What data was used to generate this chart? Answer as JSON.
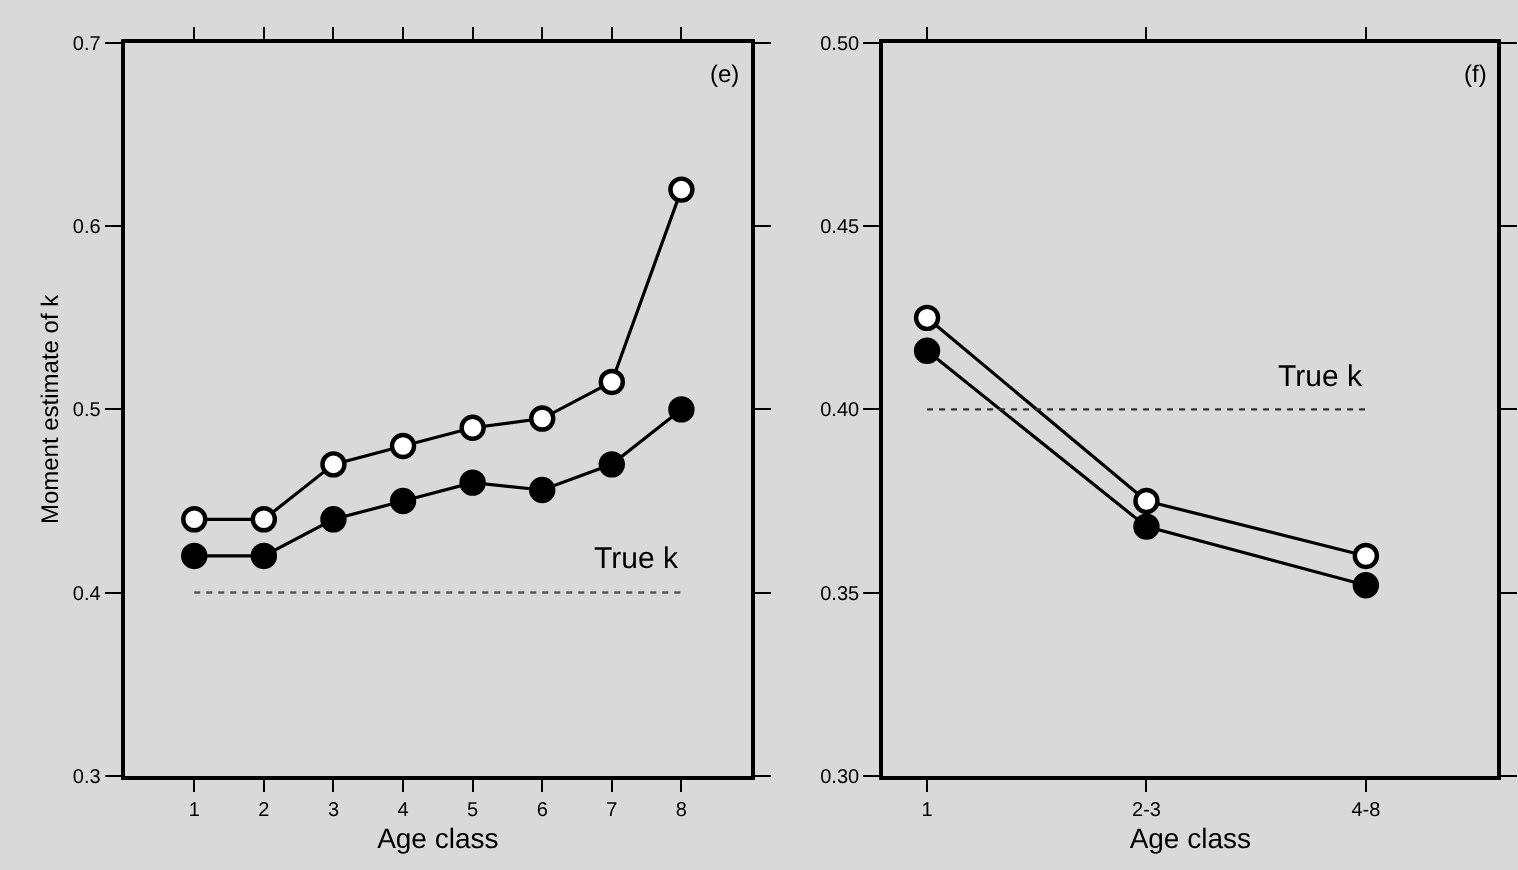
{
  "chart_data": [
    {
      "type": "line",
      "x": [
        1,
        2,
        3,
        4,
        5,
        6,
        7,
        8
      ],
      "xlim": [
        0,
        9
      ],
      "xticks": [
        1,
        2,
        3,
        4,
        5,
        6,
        7,
        8
      ],
      "ylim": [
        0.3,
        0.7
      ],
      "yticks": [
        0.3,
        0.4,
        0.5,
        0.6,
        0.7
      ],
      "xlabel": "Age class",
      "ylabel": "Moment estimate of k",
      "marker": "circle",
      "line_style": "solid",
      "series": [
        {
          "color": "#ffffff",
          "values": [
            0.44,
            0.44,
            0.47,
            0.48,
            0.49,
            0.495,
            0.515,
            0.62
          ]
        },
        {
          "color": "#000000",
          "values": [
            0.42,
            0.42,
            0.44,
            0.45,
            0.46,
            0.456,
            0.47,
            0.5
          ]
        }
      ],
      "ref_lines": [
        {
          "axis": "y",
          "value": 0.4,
          "label": "True k",
          "line_style": "dotted",
          "color": "#555555"
        }
      ],
      "annotations": [
        "(e)"
      ]
    },
    {
      "type": "line",
      "categories": [
        "1",
        "2-3",
        "4-8"
      ],
      "ylim": [
        0.3,
        0.5
      ],
      "yticks": [
        {
          "value": 0.3,
          "label": "0.30"
        },
        {
          "value": 0.35,
          "label": "0.35"
        },
        {
          "value": 0.4,
          "label": "0.40"
        },
        {
          "value": 0.45,
          "label": "0.45"
        },
        {
          "value": 0.5,
          "label": "0.50"
        }
      ],
      "xlabel": "Age class",
      "marker": "circle",
      "line_style": "solid",
      "series": [
        {
          "color": "#ffffff",
          "values": [
            0.425,
            0.375,
            0.36
          ]
        },
        {
          "color": "#000000",
          "values": [
            0.416,
            0.368,
            0.352
          ]
        }
      ],
      "ref_lines": [
        {
          "axis": "y",
          "value": 0.4,
          "label": "True k",
          "line_style": "dotted",
          "color": "#333333"
        }
      ],
      "annotations": [
        "(f)"
      ]
    }
  ]
}
